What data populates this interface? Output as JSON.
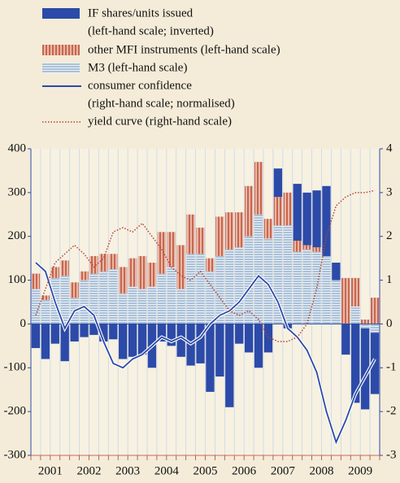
{
  "chart_data": {
    "type": "bar",
    "categories": [
      null,
      null,
      null,
      null,
      null,
      null,
      null,
      null,
      null,
      null,
      null,
      null,
      null,
      null,
      null,
      null,
      null,
      null,
      null,
      null,
      null,
      null,
      null,
      null,
      null,
      null,
      null,
      null,
      null,
      null,
      null,
      null,
      null,
      null,
      null,
      null
    ],
    "year_labels": [
      "2001",
      "2002",
      "2003",
      "2004",
      "2005",
      "2006",
      "2007",
      "2008",
      "2009"
    ],
    "ylim": [
      -300,
      400
    ],
    "yticks": [
      -300,
      -200,
      -100,
      0,
      100,
      200,
      300,
      400
    ],
    "y2lim": [
      -3,
      4
    ],
    "y2ticks": [
      -3,
      -2,
      -1,
      0,
      1,
      2,
      3,
      4
    ],
    "series": [
      {
        "name": "M3 (left-hand scale)",
        "color": "#b9cde2",
        "kind": "bar",
        "values": [
          80,
          55,
          105,
          110,
          60,
          100,
          115,
          120,
          125,
          70,
          85,
          80,
          85,
          115,
          130,
          80,
          160,
          160,
          120,
          155,
          170,
          175,
          200,
          250,
          195,
          225,
          225,
          165,
          170,
          165,
          155,
          100,
          0,
          40,
          -10,
          -20
        ]
      },
      {
        "name": "other MFI instruments (left-hand scale)",
        "color": "#c8664f",
        "kind": "bar",
        "values": [
          35,
          10,
          25,
          35,
          35,
          20,
          40,
          40,
          35,
          60,
          65,
          75,
          55,
          95,
          80,
          100,
          90,
          60,
          30,
          90,
          85,
          80,
          115,
          120,
          45,
          65,
          75,
          25,
          10,
          10,
          0,
          0,
          105,
          65,
          10,
          60
        ]
      },
      {
        "name": "IF shares/units issued",
        "name_note": "(left-hand scale; inverted)",
        "color": "#2c4aa8",
        "kind": "bar",
        "values": [
          -55,
          -80,
          -45,
          -85,
          -40,
          -30,
          -25,
          -40,
          -35,
          -80,
          -75,
          -70,
          -100,
          -40,
          -50,
          -75,
          -95,
          -90,
          -155,
          -120,
          -190,
          -45,
          -65,
          -100,
          -65,
          65,
          -10,
          130,
          120,
          130,
          160,
          40,
          -70,
          -180,
          -185,
          -140
        ]
      },
      {
        "name": "consumer confidence",
        "name_note": "(right-hand scale; normalised)",
        "color": "#2c4aa8",
        "kind": "line",
        "axis": "y2",
        "values": [
          1.4,
          1.2,
          0.5,
          -0.1,
          0.3,
          0.4,
          0.2,
          -0.4,
          -0.9,
          -1.0,
          -0.8,
          -0.7,
          -0.5,
          -0.3,
          -0.4,
          -0.3,
          -0.45,
          -0.3,
          0.0,
          0.2,
          0.3,
          0.5,
          0.8,
          1.1,
          0.9,
          0.5,
          -0.1,
          -0.3,
          -0.6,
          -1.1,
          -2.0,
          -2.7,
          -2.2,
          -1.6,
          -1.2,
          -0.8
        ]
      },
      {
        "name": "yield curve (right-hand scale)",
        "color": "#b5432f",
        "kind": "dotted",
        "axis": "y2",
        "values": [
          0.2,
          0.8,
          1.4,
          1.6,
          1.8,
          1.6,
          1.3,
          1.5,
          2.1,
          2.2,
          2.1,
          2.3,
          2.0,
          1.7,
          1.3,
          1.1,
          1.0,
          1.2,
          0.9,
          0.6,
          0.3,
          0.2,
          0.3,
          0.1,
          -0.3,
          -0.4,
          -0.4,
          -0.3,
          0.0,
          0.8,
          2.0,
          2.7,
          2.9,
          3.0,
          3.0,
          3.05
        ]
      }
    ],
    "legend_order": [
      2,
      1,
      0,
      3,
      4
    ]
  }
}
